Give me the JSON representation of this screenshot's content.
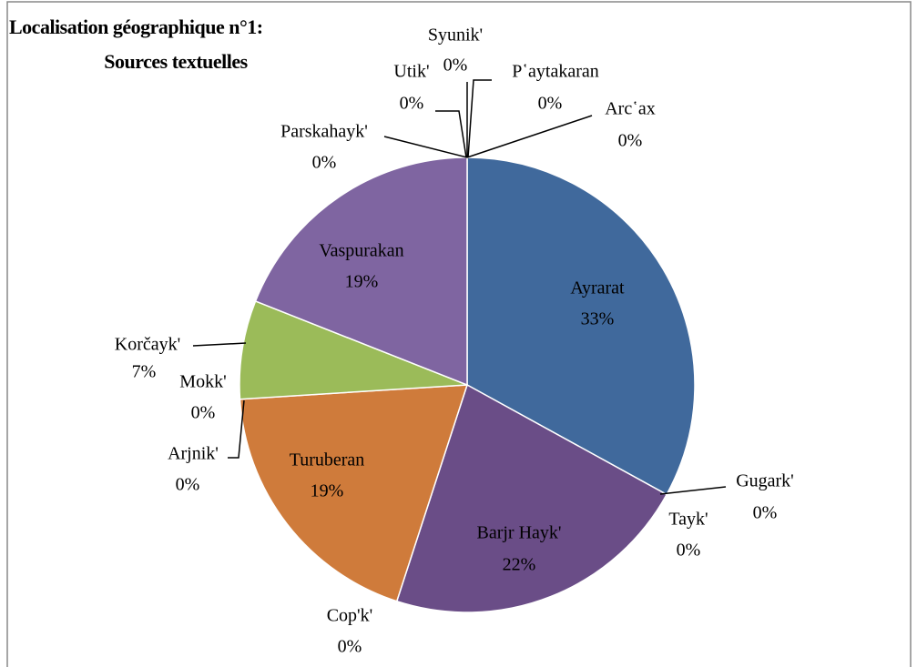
{
  "chart_data": {
    "type": "pie",
    "title": [
      "Localisation géographique n°1:",
      "Sources textuelles"
    ],
    "categories": [
      "Ayrarat",
      "Gugark'",
      "Tayk'",
      "Barjr Hayk'",
      "Cop'k'",
      "Turuberan",
      "Arjnik'",
      "Mokk'",
      "Korčayk'",
      "Vaspurakan",
      "Parskahayk'",
      "Utik'",
      "Syunik'",
      "P῾aytakaran",
      "Arc῾ax"
    ],
    "values": [
      33,
      0,
      0,
      22,
      0,
      19,
      0,
      0,
      7,
      19,
      0,
      0,
      0,
      0,
      0
    ],
    "value_labels": [
      "33%",
      "0%",
      "0%",
      "22%",
      "0%",
      "19%",
      "0%",
      "0%",
      "7%",
      "19%",
      "0%",
      "0%",
      "0%",
      "0%",
      "0%"
    ],
    "colors": [
      "#40699c",
      "#c0504d",
      "#9bbb59",
      "#6a4d87",
      "#4bacc6",
      "#cf7b3b",
      "#4f81bd",
      "#c0504d",
      "#9bbb59",
      "#7f65a1",
      "#4bacc6",
      "#f79646",
      "#2c4d75",
      "#772c2a",
      "#5f7530"
    ]
  }
}
